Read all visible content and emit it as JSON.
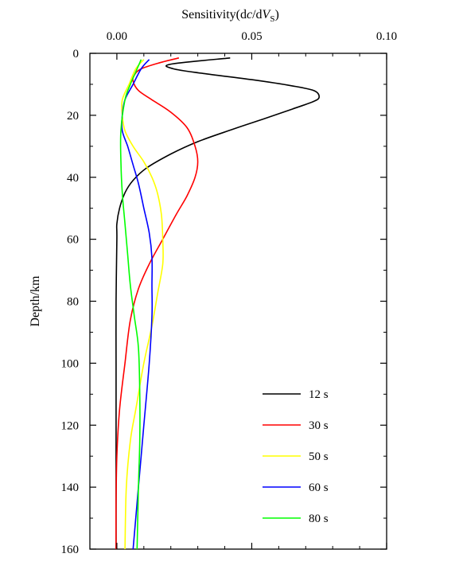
{
  "chart_data": {
    "type": "line",
    "title": "",
    "xlabel": {
      "prefix": "Sensitivity(d",
      "c": "c",
      "mid": "/d",
      "v": "V",
      "sub": "S",
      "suffix": ")"
    },
    "ylabel": "Depth/km",
    "x_axis_position": "top",
    "y_inverted": true,
    "xlim": [
      -0.01,
      0.1
    ],
    "ylim": [
      0,
      160
    ],
    "x_ticks": [
      "0.00",
      "0.05",
      "0.10"
    ],
    "x_tick_values": [
      0.0,
      0.05,
      0.1
    ],
    "y_ticks": [
      "0",
      "20",
      "40",
      "60",
      "80",
      "100",
      "120",
      "140",
      "160"
    ],
    "y_tick_values": [
      0,
      20,
      40,
      60,
      80,
      100,
      120,
      140,
      160
    ],
    "grid": false,
    "legend_position": "bottom-right",
    "series": [
      {
        "name": "12 s",
        "color": "#000000",
        "points": [
          [
            0.042,
            1.5
          ],
          [
            0.02,
            3.5
          ],
          [
            0.021,
            5
          ],
          [
            0.032,
            6.5
          ],
          [
            0.05,
            8.5
          ],
          [
            0.065,
            10.5
          ],
          [
            0.073,
            12
          ],
          [
            0.075,
            14
          ],
          [
            0.073,
            15.5
          ],
          [
            0.065,
            18
          ],
          [
            0.055,
            21
          ],
          [
            0.043,
            24.5
          ],
          [
            0.03,
            28.5
          ],
          [
            0.02,
            32.5
          ],
          [
            0.011,
            37
          ],
          [
            0.006,
            41
          ],
          [
            0.003,
            45
          ],
          [
            0.001,
            50
          ],
          [
            0.0,
            55
          ],
          [
            0.0,
            60
          ],
          [
            -0.0003,
            80
          ],
          [
            -0.0003,
            100
          ],
          [
            -0.0003,
            120
          ],
          [
            -0.0003,
            140
          ],
          [
            -0.0003,
            160
          ]
        ]
      },
      {
        "name": "30 s",
        "color": "#ff0000",
        "points": [
          [
            0.023,
            1.5
          ],
          [
            0.016,
            3
          ],
          [
            0.009,
            5
          ],
          [
            0.0065,
            7
          ],
          [
            0.006,
            9
          ],
          [
            0.008,
            12
          ],
          [
            0.013,
            15
          ],
          [
            0.02,
            19
          ],
          [
            0.026,
            24
          ],
          [
            0.029,
            30
          ],
          [
            0.03,
            35
          ],
          [
            0.029,
            40
          ],
          [
            0.026,
            46
          ],
          [
            0.022,
            52
          ],
          [
            0.017,
            60
          ],
          [
            0.012,
            68
          ],
          [
            0.008,
            76
          ],
          [
            0.005,
            86
          ],
          [
            0.003,
            100
          ],
          [
            0.001,
            115
          ],
          [
            0.0,
            130
          ],
          [
            -0.0003,
            145
          ],
          [
            -0.0003,
            160
          ]
        ]
      },
      {
        "name": "50 s",
        "color": "#ffff00",
        "points": [
          [
            0.01,
            2
          ],
          [
            0.007,
            5
          ],
          [
            0.0045,
            10
          ],
          [
            0.002,
            15
          ],
          [
            0.002,
            20
          ],
          [
            0.003,
            25
          ],
          [
            0.006,
            30
          ],
          [
            0.01,
            35
          ],
          [
            0.013,
            40
          ],
          [
            0.015,
            45
          ],
          [
            0.0165,
            52
          ],
          [
            0.017,
            60
          ],
          [
            0.017,
            68
          ],
          [
            0.015,
            78
          ],
          [
            0.013,
            88
          ],
          [
            0.01,
            100
          ],
          [
            0.007,
            115
          ],
          [
            0.005,
            125
          ],
          [
            0.0035,
            140
          ],
          [
            0.003,
            160
          ]
        ]
      },
      {
        "name": "60 s",
        "color": "#0000ff",
        "points": [
          [
            0.012,
            2
          ],
          [
            0.009,
            5
          ],
          [
            0.006,
            10
          ],
          [
            0.003,
            15
          ],
          [
            0.002,
            20
          ],
          [
            0.002,
            25
          ],
          [
            0.004,
            30
          ],
          [
            0.006,
            36
          ],
          [
            0.008,
            42
          ],
          [
            0.01,
            50
          ],
          [
            0.012,
            58
          ],
          [
            0.013,
            66
          ],
          [
            0.013,
            75
          ],
          [
            0.013,
            85
          ],
          [
            0.012,
            100
          ],
          [
            0.01,
            120
          ],
          [
            0.008,
            140
          ],
          [
            0.006,
            160
          ]
        ]
      },
      {
        "name": "80 s",
        "color": "#00ff00",
        "points": [
          [
            0.009,
            2
          ],
          [
            0.007,
            6
          ],
          [
            0.005,
            10
          ],
          [
            0.003,
            15
          ],
          [
            0.0015,
            25
          ],
          [
            0.0015,
            35
          ],
          [
            0.002,
            45
          ],
          [
            0.003,
            55
          ],
          [
            0.004,
            65
          ],
          [
            0.005,
            75
          ],
          [
            0.0065,
            85
          ],
          [
            0.008,
            95
          ],
          [
            0.0085,
            110
          ],
          [
            0.0085,
            125
          ],
          [
            0.008,
            140
          ],
          [
            0.0075,
            160
          ]
        ]
      }
    ]
  }
}
